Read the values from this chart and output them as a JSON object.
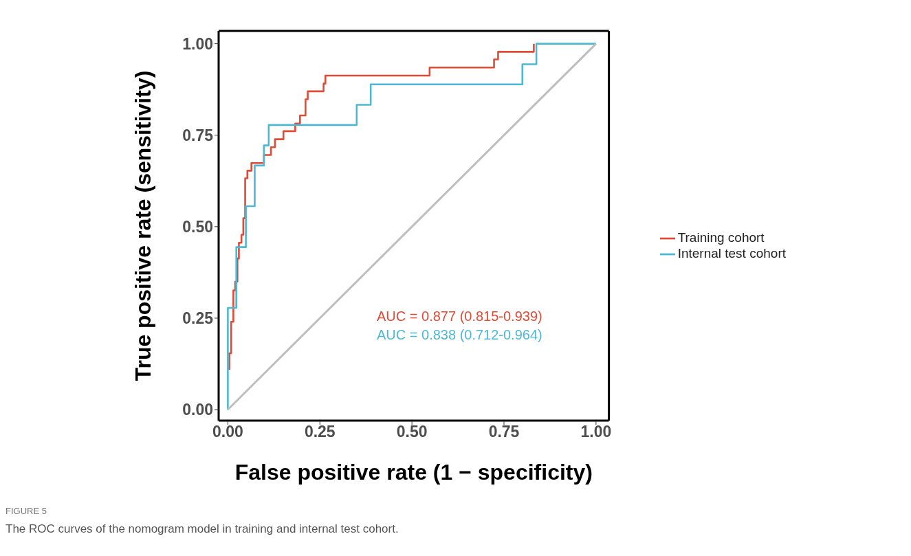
{
  "chart_data": {
    "type": "line",
    "xlabel": "False positive rate (1 − specificity)",
    "ylabel": "True positive rate (sensitivity)",
    "xlim": [
      -0.025,
      1.035
    ],
    "ylim": [
      -0.03,
      1.035
    ],
    "xticks": [
      {
        "value": 0,
        "label": "0.00"
      },
      {
        "value": 0.25,
        "label": "0.25"
      },
      {
        "value": 0.5,
        "label": "0.50"
      },
      {
        "value": 0.75,
        "label": "0.75"
      },
      {
        "value": 1,
        "label": "1.00"
      }
    ],
    "yticks": [
      {
        "value": 0,
        "label": "0.00"
      },
      {
        "value": 0.25,
        "label": "0.25"
      },
      {
        "value": 0.5,
        "label": "0.50"
      },
      {
        "value": 0.75,
        "label": "0.75"
      },
      {
        "value": 1,
        "label": "1.00"
      }
    ],
    "grid": false,
    "legend": "right",
    "marker": "none",
    "line_style": "solid",
    "series": [
      {
        "name": "Training cohort",
        "color": "#e04b35",
        "x": [
          0.004,
          0.004,
          0.009,
          0.009,
          0.015,
          0.015,
          0.02,
          0.02,
          0.026,
          0.026,
          0.03,
          0.03,
          0.037,
          0.037,
          0.042,
          0.042,
          0.047,
          0.047,
          0.053,
          0.053,
          0.064,
          0.064,
          0.098,
          0.098,
          0.117,
          0.117,
          0.128,
          0.128,
          0.151,
          0.151,
          0.183,
          0.183,
          0.196,
          0.196,
          0.211,
          0.211,
          0.217,
          0.217,
          0.26,
          0.26,
          0.265,
          0.265,
          0.548,
          0.548,
          0.723,
          0.723,
          0.734,
          0.734,
          0.831,
          0.831
        ],
        "values": [
          0.109,
          0.154,
          0.154,
          0.24,
          0.24,
          0.326,
          0.326,
          0.35,
          0.35,
          0.413,
          0.413,
          0.456,
          0.456,
          0.478,
          0.478,
          0.523,
          0.523,
          0.632,
          0.632,
          0.653,
          0.653,
          0.674,
          0.674,
          0.696,
          0.696,
          0.717,
          0.717,
          0.739,
          0.739,
          0.761,
          0.761,
          0.782,
          0.782,
          0.804,
          0.804,
          0.848,
          0.848,
          0.87,
          0.87,
          0.891,
          0.891,
          0.913,
          0.913,
          0.935,
          0.935,
          0.957,
          0.957,
          0.978,
          0.978,
          1.0
        ]
      },
      {
        "name": "Internal test cohort",
        "color": "#4db8d4",
        "x": [
          0,
          0,
          0.023,
          0.023,
          0.049,
          0.049,
          0.073,
          0.073,
          0.098,
          0.098,
          0.111,
          0.111,
          0.35,
          0.35,
          0.388,
          0.388,
          0.8,
          0.8,
          0.838,
          0.838,
          1.0
        ],
        "values": [
          0,
          0.278,
          0.278,
          0.444,
          0.444,
          0.556,
          0.556,
          0.667,
          0.667,
          0.722,
          0.722,
          0.778,
          0.778,
          0.833,
          0.833,
          0.889,
          0.889,
          0.944,
          0.944,
          1.0,
          1.0
        ]
      },
      {
        "color": "#bebebe",
        "x": [
          0,
          1
        ],
        "values": [
          0,
          1
        ]
      }
    ],
    "annotations": [
      "AUC = 0.877 (0.815-0.939)",
      "AUC = 0.838 (0.712-0.964)",
      "FIGURE 5",
      "The ROC curves of the nomogram model in training and internal test cohort."
    ]
  }
}
